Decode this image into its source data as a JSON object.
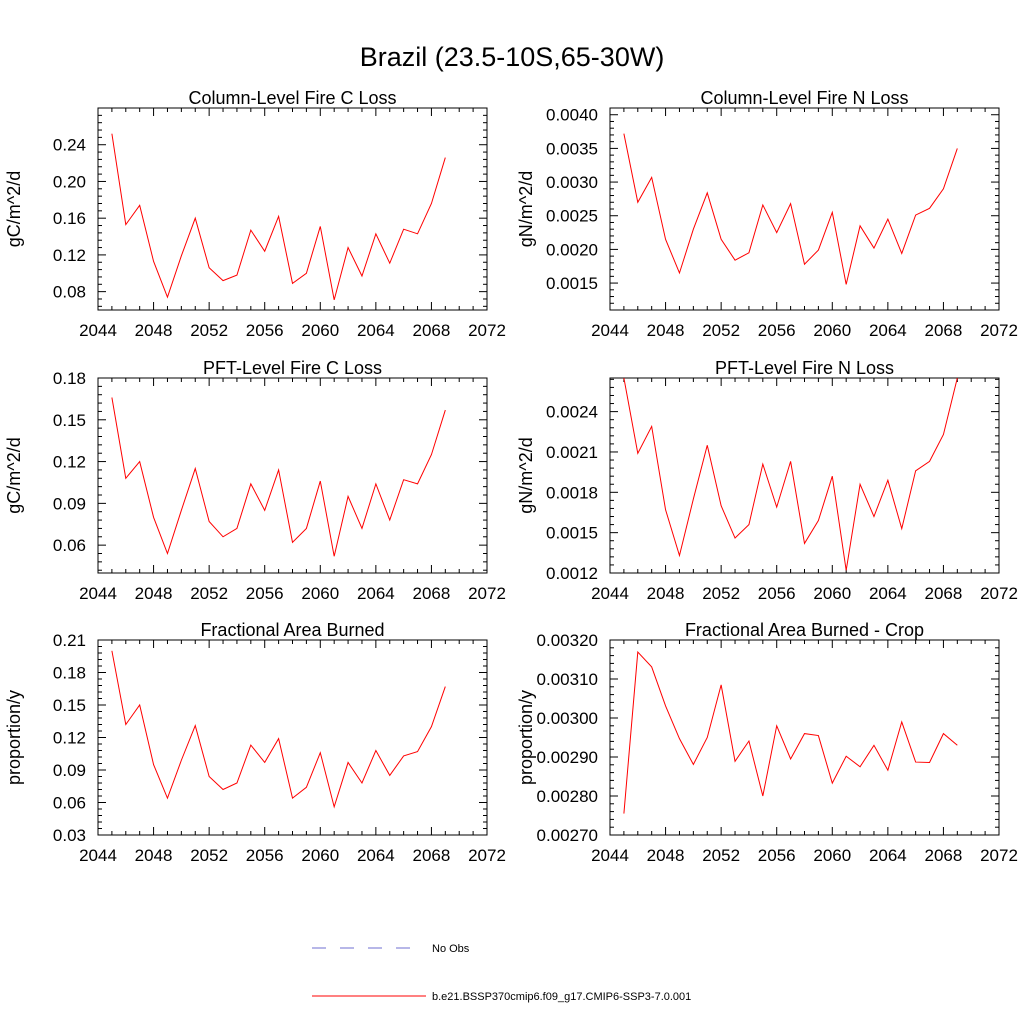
{
  "figure": {
    "title": "Brazil (23.5-10S,65-30W)"
  },
  "legend": {
    "items": [
      {
        "label": "No Obs",
        "color": "#6f6fd0",
        "dashed": true
      },
      {
        "label": "b.e21.BSSP370cmip6.f09_g17.CMIP6-SSP3-7.0.001",
        "color": "#ff0000",
        "dashed": false
      }
    ],
    "placement": "bottom-center"
  },
  "chart_data": [
    {
      "type": "line",
      "title": "Column-Level Fire C Loss",
      "ylabel": "gC/m^2/d",
      "xlabel": "",
      "xlim": [
        2044,
        2072
      ],
      "ylim": [
        0.06,
        0.28
      ],
      "xticks": [
        2044,
        2048,
        2052,
        2056,
        2060,
        2064,
        2068,
        2072
      ],
      "xtick_labels": [
        "2044",
        "2048",
        "2052",
        "2056",
        "2060",
        "2064",
        "2068",
        "2072"
      ],
      "yticks": [
        0.08,
        0.12,
        0.16,
        0.2,
        0.24
      ],
      "ytick_labels": [
        "0.08",
        "0.12",
        "0.16",
        "0.20",
        "0.24"
      ],
      "grid": false,
      "series": [
        {
          "color": "#ff0000",
          "x": [
            2045,
            2046,
            2047,
            2048,
            2049,
            2050,
            2051,
            2052,
            2053,
            2054,
            2055,
            2056,
            2057,
            2058,
            2059,
            2060,
            2061,
            2062,
            2063,
            2064,
            2065,
            2066,
            2067,
            2068,
            2069
          ],
          "y": [
            0.252,
            0.153,
            0.174,
            0.113,
            0.074,
            0.119,
            0.16,
            0.106,
            0.092,
            0.098,
            0.147,
            0.124,
            0.162,
            0.089,
            0.1,
            0.151,
            0.071,
            0.128,
            0.097,
            0.143,
            0.111,
            0.148,
            0.143,
            0.176,
            0.226
          ]
        }
      ]
    },
    {
      "type": "line",
      "title": "Column-Level Fire N Loss",
      "ylabel": "gN/m^2/d",
      "xlabel": "",
      "xlim": [
        2044,
        2072
      ],
      "ylim": [
        0.0011,
        0.0041
      ],
      "xticks": [
        2044,
        2048,
        2052,
        2056,
        2060,
        2064,
        2068,
        2072
      ],
      "xtick_labels": [
        "2044",
        "2048",
        "2052",
        "2056",
        "2060",
        "2064",
        "2068",
        "2072"
      ],
      "yticks": [
        0.0015,
        0.002,
        0.0025,
        0.003,
        0.0035,
        0.004
      ],
      "ytick_labels": [
        "0.0015",
        "0.0020",
        "0.0025",
        "0.0030",
        "0.0035",
        "0.0040"
      ],
      "grid": false,
      "series": [
        {
          "color": "#ff0000",
          "x": [
            2045,
            2046,
            2047,
            2048,
            2049,
            2050,
            2051,
            2052,
            2053,
            2054,
            2055,
            2056,
            2057,
            2058,
            2059,
            2060,
            2061,
            2062,
            2063,
            2064,
            2065,
            2066,
            2067,
            2068,
            2069
          ],
          "y": [
            0.00372,
            0.0027,
            0.00307,
            0.00215,
            0.00165,
            0.0023,
            0.00284,
            0.00215,
            0.00184,
            0.00195,
            0.00266,
            0.00225,
            0.00268,
            0.00178,
            0.00199,
            0.00255,
            0.00148,
            0.00235,
            0.00202,
            0.00245,
            0.00194,
            0.00251,
            0.00261,
            0.0029,
            0.0035
          ]
        }
      ]
    },
    {
      "type": "line",
      "title": "PFT-Level Fire C Loss",
      "ylabel": "gC/m^2/d",
      "xlabel": "",
      "xlim": [
        2044,
        2072
      ],
      "ylim": [
        0.04,
        0.18
      ],
      "xticks": [
        2044,
        2048,
        2052,
        2056,
        2060,
        2064,
        2068,
        2072
      ],
      "xtick_labels": [
        "2044",
        "2048",
        "2052",
        "2056",
        "2060",
        "2064",
        "2068",
        "2072"
      ],
      "yticks": [
        0.06,
        0.09,
        0.12,
        0.15,
        0.18
      ],
      "ytick_labels": [
        "0.06",
        "0.09",
        "0.12",
        "0.15",
        "0.18"
      ],
      "grid": false,
      "series": [
        {
          "color": "#ff0000",
          "x": [
            2045,
            2046,
            2047,
            2048,
            2049,
            2050,
            2051,
            2052,
            2053,
            2054,
            2055,
            2056,
            2057,
            2058,
            2059,
            2060,
            2061,
            2062,
            2063,
            2064,
            2065,
            2066,
            2067,
            2068,
            2069
          ],
          "y": [
            0.166,
            0.108,
            0.12,
            0.08,
            0.054,
            0.085,
            0.115,
            0.077,
            0.066,
            0.072,
            0.104,
            0.085,
            0.114,
            0.062,
            0.072,
            0.106,
            0.052,
            0.095,
            0.072,
            0.104,
            0.078,
            0.107,
            0.104,
            0.125,
            0.157
          ]
        }
      ]
    },
    {
      "type": "line",
      "title": "PFT-Level Fire N Loss",
      "ylabel": "gN/m^2/d",
      "xlabel": "",
      "xlim": [
        2044,
        2072
      ],
      "ylim": [
        0.0012,
        0.00265
      ],
      "xticks": [
        2044,
        2048,
        2052,
        2056,
        2060,
        2064,
        2068,
        2072
      ],
      "xtick_labels": [
        "2044",
        "2048",
        "2052",
        "2056",
        "2060",
        "2064",
        "2068",
        "2072"
      ],
      "yticks": [
        0.0012,
        0.0015,
        0.0018,
        0.0021,
        0.0024
      ],
      "ytick_labels": [
        "0.0012",
        "0.0015",
        "0.0018",
        "0.0021",
        "0.0024"
      ],
      "grid": false,
      "series": [
        {
          "color": "#ff0000",
          "x": [
            2045,
            2046,
            2047,
            2048,
            2049,
            2050,
            2051,
            2052,
            2053,
            2054,
            2055,
            2056,
            2057,
            2058,
            2059,
            2060,
            2061,
            2062,
            2063,
            2064,
            2065,
            2066,
            2067,
            2068,
            2069
          ],
          "y": [
            0.00265,
            0.00209,
            0.00229,
            0.00167,
            0.00133,
            0.00175,
            0.00215,
            0.0017,
            0.00146,
            0.00156,
            0.00201,
            0.00169,
            0.00203,
            0.00142,
            0.00159,
            0.00192,
            0.00122,
            0.00186,
            0.00162,
            0.00189,
            0.00153,
            0.00196,
            0.00203,
            0.00223,
            0.00265
          ]
        }
      ]
    },
    {
      "type": "line",
      "title": "Fractional Area Burned",
      "ylabel": "proportion/y",
      "xlabel": "",
      "xlim": [
        2044,
        2072
      ],
      "ylim": [
        0.03,
        0.21
      ],
      "xticks": [
        2044,
        2048,
        2052,
        2056,
        2060,
        2064,
        2068,
        2072
      ],
      "xtick_labels": [
        "2044",
        "2048",
        "2052",
        "2056",
        "2060",
        "2064",
        "2068",
        "2072"
      ],
      "yticks": [
        0.03,
        0.06,
        0.09,
        0.12,
        0.15,
        0.18,
        0.21
      ],
      "ytick_labels": [
        "0.03",
        "0.06",
        "0.09",
        "0.12",
        "0.15",
        "0.18",
        "0.21"
      ],
      "grid": false,
      "series": [
        {
          "color": "#ff0000",
          "x": [
            2045,
            2046,
            2047,
            2048,
            2049,
            2050,
            2051,
            2052,
            2053,
            2054,
            2055,
            2056,
            2057,
            2058,
            2059,
            2060,
            2061,
            2062,
            2063,
            2064,
            2065,
            2066,
            2067,
            2068,
            2069
          ],
          "y": [
            0.2,
            0.132,
            0.15,
            0.095,
            0.064,
            0.099,
            0.131,
            0.084,
            0.072,
            0.078,
            0.113,
            0.097,
            0.119,
            0.064,
            0.074,
            0.106,
            0.056,
            0.097,
            0.078,
            0.108,
            0.085,
            0.103,
            0.107,
            0.13,
            0.167
          ]
        }
      ]
    },
    {
      "type": "line",
      "title": "Fractional Area Burned - Crop",
      "ylabel": "proportion/y",
      "xlabel": "",
      "xlim": [
        2044,
        2072
      ],
      "ylim": [
        0.0027,
        0.0032
      ],
      "xticks": [
        2044,
        2048,
        2052,
        2056,
        2060,
        2064,
        2068,
        2072
      ],
      "xtick_labels": [
        "2044",
        "2048",
        "2052",
        "2056",
        "2060",
        "2064",
        "2068",
        "2072"
      ],
      "yticks": [
        0.0027,
        0.0028,
        0.0029,
        0.003,
        0.0031,
        0.0032
      ],
      "ytick_labels": [
        "0.00270",
        "0.00280",
        "0.00290",
        "0.00300",
        "0.00310",
        "0.00320"
      ],
      "grid": false,
      "series": [
        {
          "color": "#ff0000",
          "x": [
            2045,
            2046,
            2047,
            2048,
            2049,
            2050,
            2051,
            2052,
            2053,
            2054,
            2055,
            2056,
            2057,
            2058,
            2059,
            2060,
            2061,
            2062,
            2063,
            2064,
            2065,
            2066,
            2067,
            2068,
            2069
          ],
          "y": [
            0.002755,
            0.003169,
            0.003131,
            0.003031,
            0.002947,
            0.002881,
            0.00295,
            0.003085,
            0.002889,
            0.002941,
            0.0028,
            0.00298,
            0.002895,
            0.00296,
            0.002955,
            0.002833,
            0.002902,
            0.002875,
            0.00293,
            0.002866,
            0.00299,
            0.002887,
            0.002886,
            0.00296,
            0.00293
          ]
        }
      ]
    }
  ]
}
